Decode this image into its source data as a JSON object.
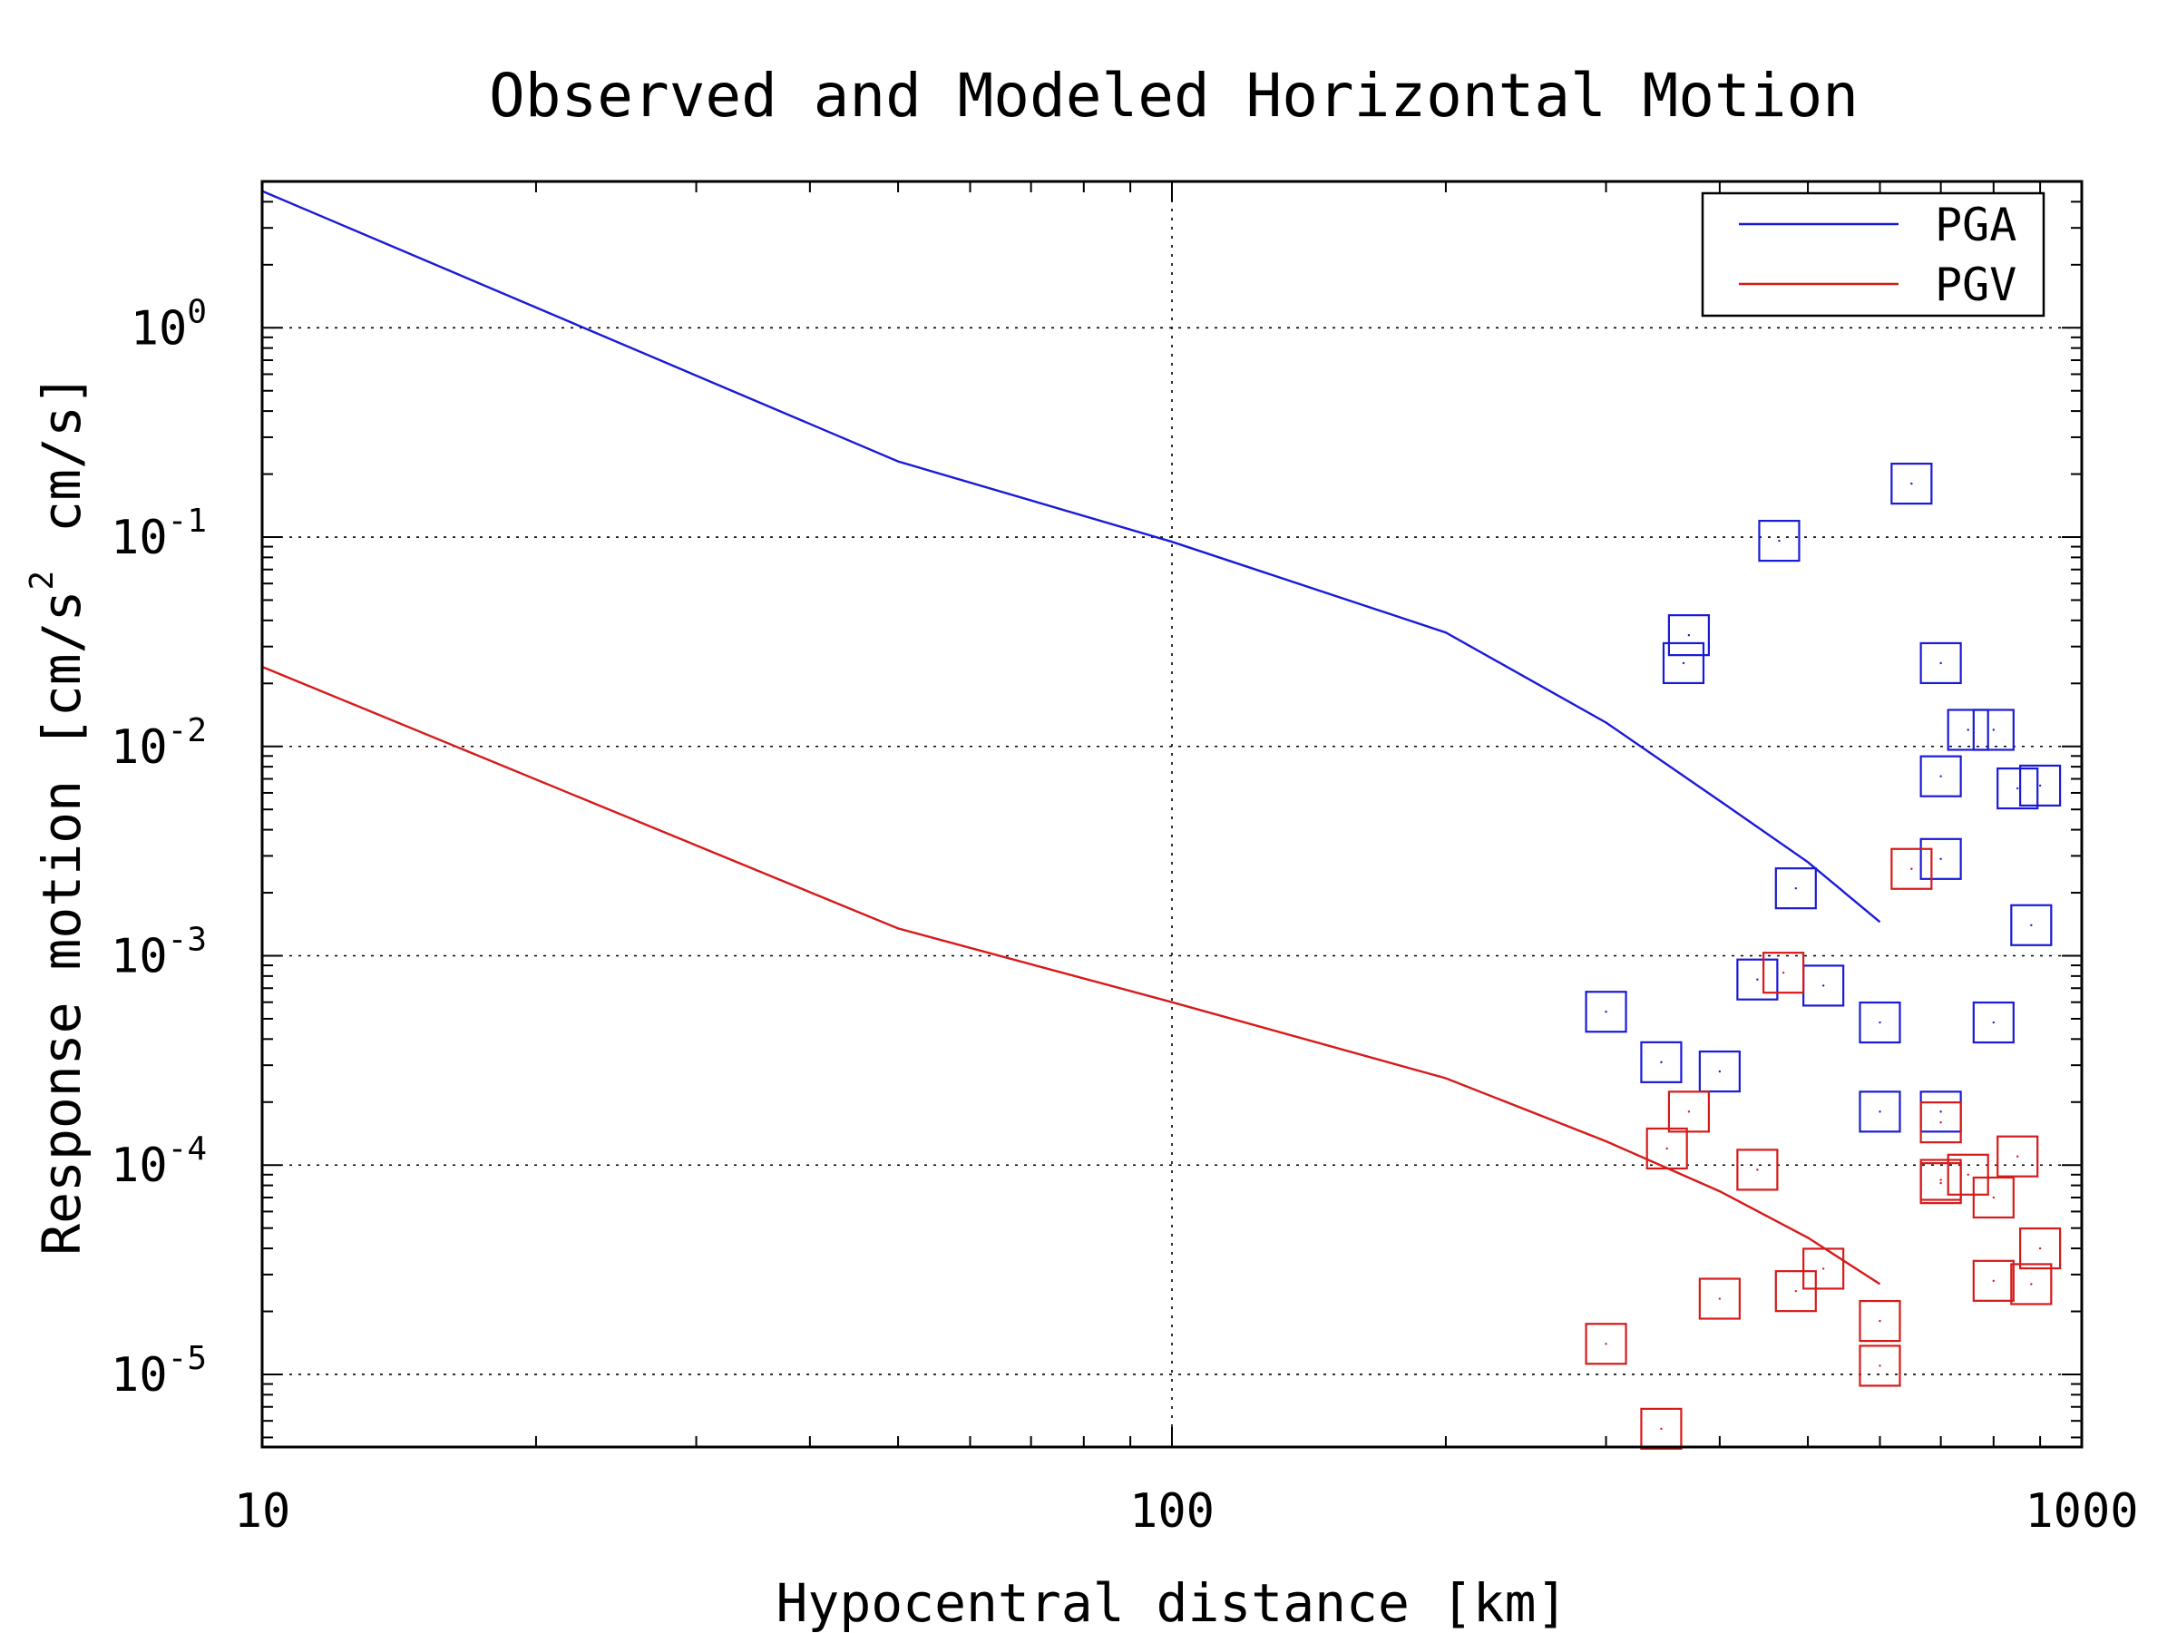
{
  "chart_data": {
    "type": "scatter",
    "title": "Observed and Modeled Horizontal Motion",
    "xlabel": "Hypocentral distance [km]",
    "ylabel": "Response motion [cm/s",
    "ylabel_sup": "2",
    "ylabel_tail": "cm/s]",
    "xscale": "log",
    "yscale": "log",
    "xlim": [
      10,
      1000
    ],
    "ylim": [
      4.5e-06,
      5.0
    ],
    "x_ticks": [
      {
        "value": 10,
        "label": "10"
      },
      {
        "value": 100,
        "label": "100"
      },
      {
        "value": 1000,
        "label": "1000"
      }
    ],
    "y_ticks": [
      {
        "value": 1e-05,
        "base": "10",
        "exp": "-5"
      },
      {
        "value": 0.0001,
        "base": "10",
        "exp": "-4"
      },
      {
        "value": 0.001,
        "base": "10",
        "exp": "-3"
      },
      {
        "value": 0.01,
        "base": "10",
        "exp": "-2"
      },
      {
        "value": 0.1,
        "base": "10",
        "exp": "-1"
      },
      {
        "value": 1,
        "base": "10",
        "exp": "0"
      }
    ],
    "grid": true,
    "legend_position": "top-right",
    "series": [
      {
        "name": "PGA",
        "color": "#1a1ad6",
        "kind": "line",
        "x": [
          10,
          50,
          100,
          200,
          300,
          400,
          500,
          600
        ],
        "y": [
          4.5,
          0.23,
          0.095,
          0.035,
          0.013,
          0.0055,
          0.0028,
          0.00145
        ]
      },
      {
        "name": "PGV",
        "color": "#d61a1a",
        "kind": "line",
        "x": [
          10,
          50,
          100,
          200,
          300,
          400,
          500,
          600
        ],
        "y": [
          0.024,
          0.00135,
          0.0006,
          0.00026,
          0.00013,
          7.5e-05,
          4.5e-05,
          2.7e-05
        ]
      },
      {
        "color": "#1a1ad6",
        "kind": "markers",
        "marker": "square",
        "x": [
          300,
          345,
          365,
          370,
          400,
          440,
          465,
          485,
          520,
          600,
          600,
          650,
          700,
          700,
          700,
          700,
          750,
          800,
          800,
          850,
          880,
          900
        ],
        "y": [
          0.00054,
          0.00031,
          0.025,
          0.034,
          0.00028,
          0.00077,
          0.096,
          0.0021,
          0.00072,
          0.00048,
          0.00018,
          0.18,
          0.025,
          0.0072,
          0.0029,
          0.00018,
          0.012,
          0.012,
          0.00048,
          0.0063,
          0.0014,
          0.0065
        ]
      },
      {
        "color": "#d61a1a",
        "kind": "markers",
        "marker": "square",
        "x": [
          300,
          345,
          350,
          370,
          400,
          440,
          470,
          485,
          520,
          600,
          600,
          650,
          700,
          700,
          700,
          750,
          800,
          800,
          850,
          880,
          900
        ],
        "y": [
          1.4e-05,
          5.5e-06,
          0.00012,
          0.00018,
          2.3e-05,
          9.5e-05,
          0.00083,
          2.5e-05,
          3.2e-05,
          1.8e-05,
          1.1e-05,
          0.0026,
          0.00016,
          8.5e-05,
          8.2e-05,
          9e-05,
          7e-05,
          2.8e-05,
          0.00011,
          2.7e-05,
          4e-05
        ]
      }
    ]
  }
}
